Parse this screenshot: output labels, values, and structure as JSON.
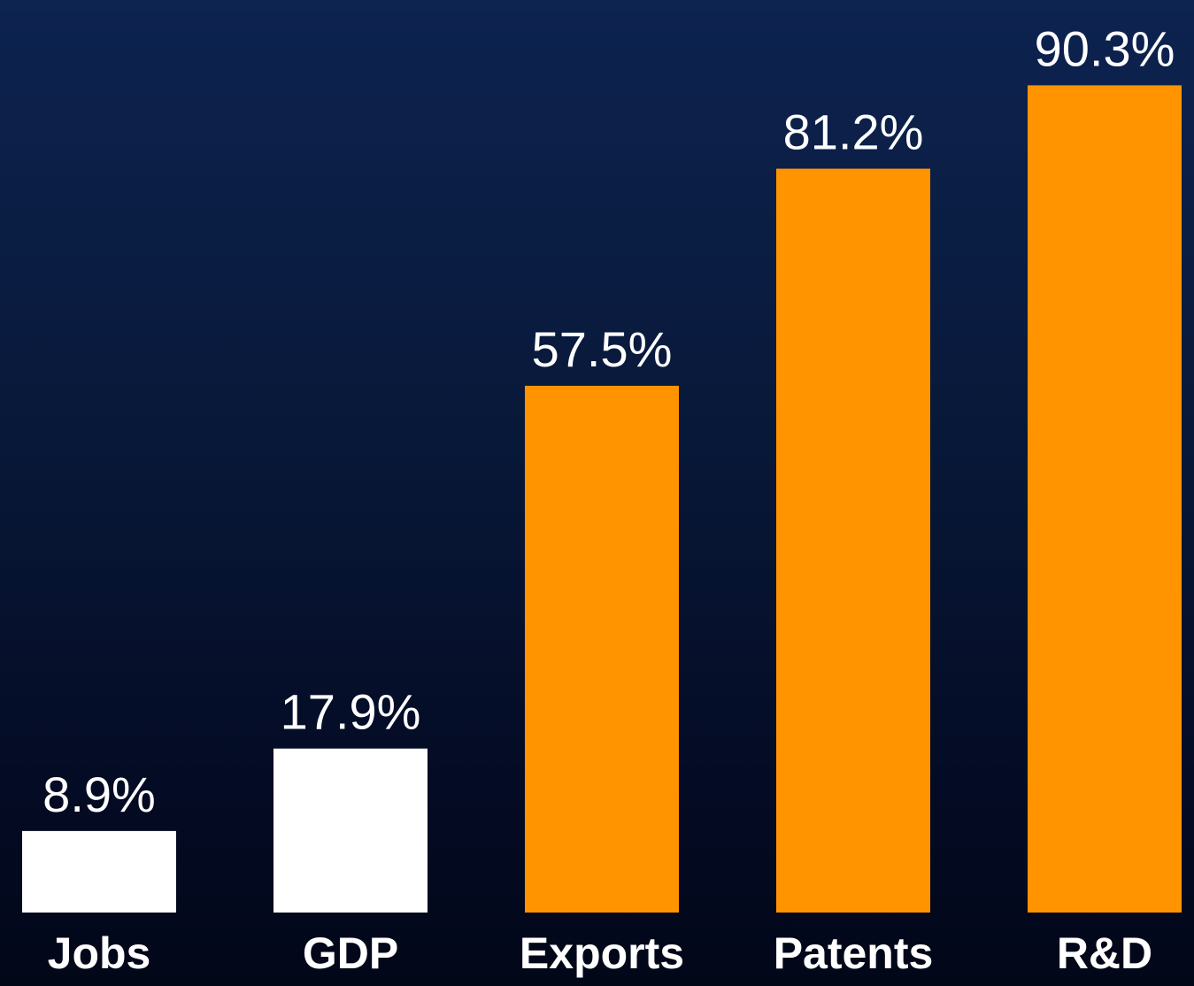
{
  "chart_data": {
    "type": "bar",
    "categories": [
      "Jobs",
      "GDP",
      "Exports",
      "Patents",
      "R&D"
    ],
    "values": [
      8.9,
      17.9,
      57.5,
      81.2,
      90.3
    ],
    "data_labels": [
      "8.9%",
      "17.9%",
      "57.5%",
      "81.2%",
      "90.3%"
    ],
    "bar_colors": [
      "#ffffff",
      "#ffffff",
      "#ff9400",
      "#ff9400",
      "#ff9400"
    ],
    "title": "",
    "xlabel": "",
    "ylabel": "",
    "ylim": [
      0,
      100
    ],
    "grid": false,
    "legend": "none"
  },
  "colors": {
    "background_top": "#0d2350",
    "background_bottom": "#020718",
    "highlight": "#ff9400",
    "neutral": "#ffffff",
    "text": "#ffffff"
  }
}
